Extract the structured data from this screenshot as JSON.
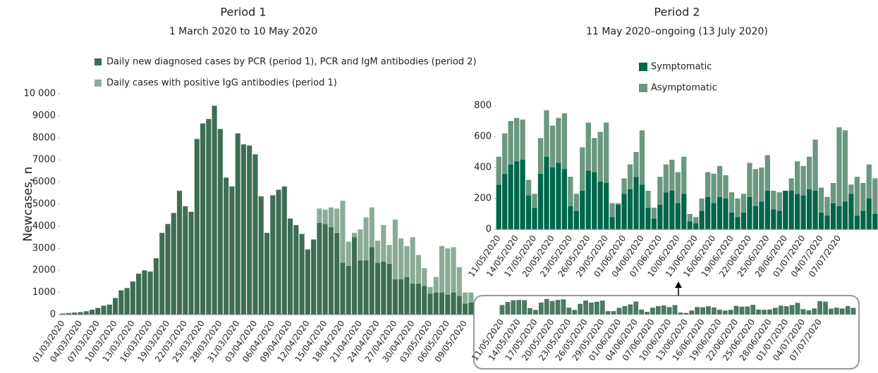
{
  "chart_data": [
    {
      "type": "bar",
      "stacked": true,
      "title": "Period 1",
      "subtitle": "1 March 2020 to 10 May 2020",
      "y_label": "Newcases, n",
      "categories": [
        "01/03/2020",
        null,
        null,
        "04/03/2020",
        null,
        null,
        "07/03/2020",
        null,
        null,
        "10/03/2020",
        null,
        null,
        "13/03/2020",
        null,
        null,
        "16/03/2020",
        null,
        null,
        "19/03/2020",
        null,
        null,
        "22/03/2020",
        null,
        null,
        "25/03/2020",
        null,
        null,
        "28/03/2020",
        null,
        null,
        "31/03/2020",
        null,
        null,
        "03/04/2020",
        null,
        null,
        "06/04/2020",
        null,
        null,
        "09/04/2020",
        null,
        null,
        "12/04/2020",
        null,
        null,
        "15/04/2020",
        null,
        null,
        "18/04/2020",
        null,
        null,
        "21/04/2020",
        null,
        null,
        "24/04/2020",
        null,
        null,
        "27/04/2020",
        null,
        null,
        "30/04/2020",
        null,
        null,
        "03/05/2020",
        null,
        null,
        "06/05/2020",
        null,
        null,
        "09/05/2020",
        null
      ],
      "series": [
        {
          "name": "Daily new diagnosed cases by PCR (period 1), PCR and IgM antibodies (period 2)",
          "color": "#3d6e54",
          "values": [
            50,
            70,
            90,
            110,
            150,
            220,
            300,
            400,
            450,
            750,
            1100,
            1200,
            1500,
            1850,
            2000,
            1950,
            2550,
            3700,
            4100,
            4600,
            5600,
            4900,
            4650,
            7950,
            8650,
            8850,
            9450,
            8400,
            6200,
            5800,
            8200,
            7700,
            7650,
            7250,
            5350,
            3700,
            5400,
            5650,
            5800,
            4350,
            4050,
            3650,
            2950,
            3400,
            4150,
            4100,
            3950,
            3700,
            2350,
            2200,
            3500,
            2450,
            2450,
            3050,
            2350,
            2400,
            2300,
            1600,
            1600,
            1700,
            1400,
            1400,
            1300,
            950,
            1000,
            1000,
            900,
            1000,
            850,
            500,
            550
          ]
        },
        {
          "name": "Daily cases with positive IgG antibodies (period 1)",
          "color": "#8aac97",
          "values": [
            0,
            0,
            0,
            0,
            0,
            0,
            0,
            0,
            0,
            0,
            0,
            0,
            0,
            0,
            0,
            0,
            0,
            0,
            0,
            0,
            0,
            0,
            0,
            0,
            0,
            0,
            0,
            0,
            0,
            0,
            0,
            0,
            0,
            0,
            0,
            0,
            0,
            0,
            0,
            0,
            0,
            0,
            0,
            0,
            650,
            650,
            900,
            1100,
            2800,
            1100,
            200,
            1400,
            1950,
            1800,
            1000,
            1650,
            850,
            2700,
            1850,
            1400,
            2100,
            1300,
            800,
            300,
            700,
            2100,
            2100,
            2050,
            1300,
            500,
            450
          ]
        }
      ],
      "ylim": [
        0,
        10000
      ],
      "yticks": [
        0,
        1000,
        2000,
        3000,
        4000,
        5000,
        6000,
        7000,
        8000,
        9000,
        {
          "value": 10000,
          "label": "10 000"
        }
      ]
    },
    {
      "type": "bar",
      "stacked": true,
      "title": "Period 2",
      "subtitle": "11 May 2020–ongoing (13 July 2020)",
      "categories": [
        "11/05/2020",
        null,
        null,
        "14/05/2020",
        null,
        null,
        "17/05/2020",
        null,
        null,
        "20/05/2020",
        null,
        null,
        "23/05/2020",
        null,
        null,
        "26/05/2020",
        null,
        null,
        "29/05/2020",
        null,
        null,
        "01/06/2020",
        null,
        null,
        "04/06/2020",
        null,
        null,
        "07/06/2020",
        null,
        null,
        "10/06/2020",
        null,
        null,
        "13/06/2020",
        null,
        null,
        "16/06/2020",
        null,
        null,
        "19/06/2020",
        null,
        null,
        "22/06/2020",
        null,
        null,
        "25/06/2020",
        null,
        null,
        "28/06/2020",
        null,
        null,
        "01/07/2020",
        null,
        null,
        "04/07/2020",
        null,
        null,
        "07/07/2020",
        null,
        null,
        null,
        null,
        null,
        null
      ],
      "series": [
        {
          "name": "Symptomatic",
          "color": "#00664a",
          "values": [
            290,
            360,
            420,
            440,
            450,
            220,
            140,
            360,
            470,
            400,
            430,
            390,
            150,
            120,
            250,
            380,
            370,
            310,
            300,
            80,
            160,
            230,
            260,
            340,
            290,
            140,
            70,
            160,
            240,
            250,
            170,
            230,
            50,
            40,
            120,
            210,
            170,
            210,
            200,
            110,
            80,
            110,
            210,
            150,
            180,
            250,
            130,
            120,
            250,
            250,
            230,
            220,
            260,
            250,
            110,
            90,
            170,
            150,
            180,
            230,
            90,
            120,
            200,
            100
          ]
        },
        {
          "name": "Asymptomatic",
          "color": "#6a9880",
          "values": [
            180,
            260,
            280,
            280,
            260,
            100,
            90,
            230,
            300,
            270,
            290,
            360,
            190,
            110,
            280,
            310,
            220,
            320,
            390,
            90,
            10,
            100,
            160,
            160,
            350,
            110,
            70,
            180,
            180,
            200,
            200,
            240,
            50,
            40,
            80,
            160,
            190,
            200,
            150,
            130,
            120,
            120,
            220,
            240,
            220,
            230,
            120,
            120,
            0,
            80,
            210,
            190,
            210,
            330,
            160,
            120,
            130,
            510,
            460,
            60,
            250,
            180,
            220,
            230
          ]
        }
      ],
      "ylim": [
        0,
        800
      ],
      "yticks": [
        0,
        200,
        400,
        600,
        800
      ]
    }
  ]
}
